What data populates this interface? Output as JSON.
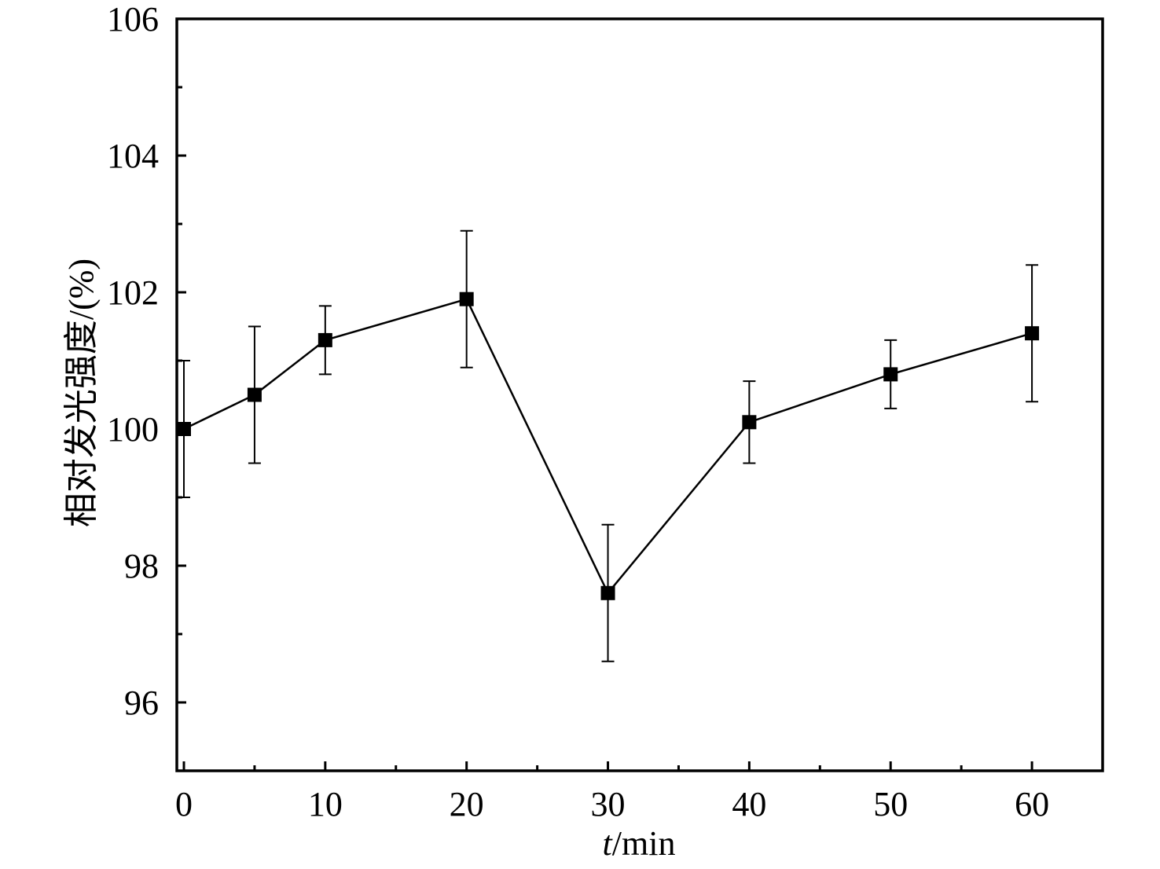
{
  "chart_data": {
    "type": "line",
    "title": "",
    "xlabel_var": "t",
    "xlabel_unit": "/min",
    "ylabel": "相对发光强度/(%)",
    "xlim": [
      -0.5,
      65
    ],
    "ylim": [
      95,
      106
    ],
    "x_ticks": [
      0,
      10,
      20,
      30,
      40,
      50,
      60
    ],
    "x_minor_ticks": [
      5,
      15,
      25,
      35,
      45,
      55
    ],
    "y_ticks": [
      96,
      98,
      100,
      102,
      104,
      106
    ],
    "y_minor_ticks": [
      97,
      99,
      101,
      103,
      105
    ],
    "grid": false,
    "legend": "none",
    "marker": "square",
    "color": "#000000",
    "series": [
      {
        "x": [
          0,
          5,
          10,
          20,
          30,
          40,
          50,
          60
        ],
        "y": [
          100.0,
          100.5,
          101.3,
          101.9,
          97.6,
          100.1,
          100.8,
          101.4
        ],
        "error": [
          1.0,
          1.0,
          0.5,
          1.0,
          1.0,
          0.6,
          0.5,
          1.0
        ]
      }
    ]
  }
}
